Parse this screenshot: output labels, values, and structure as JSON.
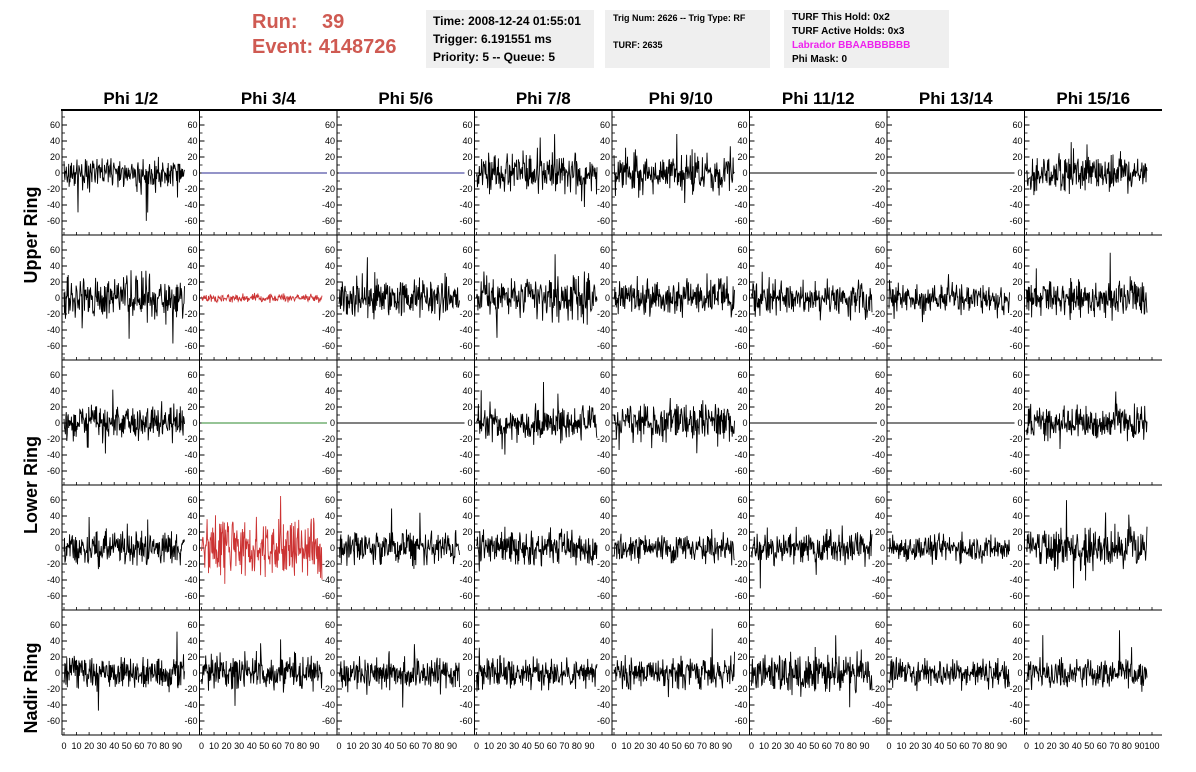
{
  "header": {
    "run_label": "Run:",
    "run_value": "39",
    "event_label": "Event:",
    "event_value": "4148726"
  },
  "info": {
    "time": "Time: 2008-12-24 01:55:01",
    "trigger": "Trigger: 6.191551 ms",
    "priority": "Priority: 5 -- Queue: 5",
    "trig_num": "Trig Num: 2626 -- Trig Type: RF",
    "turf": "TURF: 2635",
    "turf_this_hold": "TURF This Hold: 0x2",
    "turf_active_holds": "TURF Active Holds: 0x3",
    "labrador": "Labrador BBAABBBBBB",
    "phi_mask": "Phi Mask: 0"
  },
  "colors": {
    "run_text": "#cf5a52",
    "labrador_text": "#ee22ee",
    "info_box_bg": "#efefef",
    "trace_default": "#000000",
    "trace_red": "#cc3333",
    "trace_blue": "#2a2a90",
    "trace_green": "#2d8a2d"
  },
  "column_labels": [
    "Phi 1/2",
    "Phi 3/4",
    "Phi 5/6",
    "Phi 7/8",
    "Phi 9/10",
    "Phi 11/12",
    "Phi 13/14",
    "Phi 15/16"
  ],
  "ring_labels": [
    "Upper Ring",
    "Lower Ring",
    "Nadir Ring"
  ],
  "chart_data": {
    "type": "line",
    "title": "",
    "xlabel": "",
    "ylabel": "",
    "xlim": [
      0,
      100
    ],
    "ylim": [
      -70,
      70
    ],
    "y_ticks": [
      -60,
      -40,
      -20,
      0,
      20,
      40,
      60
    ],
    "x_ticks": [
      0,
      10,
      20,
      30,
      40,
      50,
      60,
      70,
      80,
      90,
      100
    ],
    "grid": false,
    "legend": "none",
    "panels": [
      {
        "row": 1,
        "col": 1,
        "color": "#000000",
        "flat": false,
        "x_range": [
          0,
          96
        ],
        "amplitude": 13,
        "seed": 11
      },
      {
        "row": 1,
        "col": 2,
        "color": "#2a2a90",
        "flat": true
      },
      {
        "row": 1,
        "col": 3,
        "color": "#2a2a90",
        "flat": true
      },
      {
        "row": 1,
        "col": 4,
        "color": "#000000",
        "flat": false,
        "x_range": [
          0,
          96
        ],
        "amplitude": 14,
        "seed": 12
      },
      {
        "row": 1,
        "col": 5,
        "color": "#000000",
        "flat": false,
        "x_range": [
          0,
          96
        ],
        "amplitude": 15,
        "seed": 13
      },
      {
        "row": 1,
        "col": 6,
        "color": "#000000",
        "flat": true
      },
      {
        "row": 1,
        "col": 7,
        "color": "#000000",
        "flat": true
      },
      {
        "row": 1,
        "col": 8,
        "color": "#000000",
        "flat": false,
        "x_range": [
          0,
          96
        ],
        "amplitude": 15,
        "seed": 14
      },
      {
        "row": 2,
        "col": 1,
        "color": "#000000",
        "flat": false,
        "x_range": [
          0,
          96
        ],
        "amplitude": 17,
        "seed": 21
      },
      {
        "row": 2,
        "col": 2,
        "color": "#cc3333",
        "flat": false,
        "x_range": [
          0,
          96
        ],
        "amplitude": 3,
        "seed": 22
      },
      {
        "row": 2,
        "col": 3,
        "color": "#000000",
        "flat": false,
        "x_range": [
          0,
          96
        ],
        "amplitude": 15,
        "seed": 23
      },
      {
        "row": 2,
        "col": 4,
        "color": "#000000",
        "flat": false,
        "x_range": [
          0,
          96
        ],
        "amplitude": 17,
        "seed": 24
      },
      {
        "row": 2,
        "col": 5,
        "color": "#000000",
        "flat": false,
        "x_range": [
          0,
          96
        ],
        "amplitude": 13,
        "seed": 25
      },
      {
        "row": 2,
        "col": 6,
        "color": "#000000",
        "flat": false,
        "x_range": [
          0,
          96
        ],
        "amplitude": 14,
        "seed": 26
      },
      {
        "row": 2,
        "col": 7,
        "color": "#000000",
        "flat": false,
        "x_range": [
          0,
          96
        ],
        "amplitude": 11,
        "seed": 27
      },
      {
        "row": 2,
        "col": 8,
        "color": "#000000",
        "flat": false,
        "x_range": [
          0,
          96
        ],
        "amplitude": 14,
        "seed": 28
      },
      {
        "row": 3,
        "col": 1,
        "color": "#000000",
        "flat": false,
        "x_range": [
          0,
          96
        ],
        "amplitude": 13,
        "seed": 31
      },
      {
        "row": 3,
        "col": 2,
        "color": "#2d8a2d",
        "flat": true
      },
      {
        "row": 3,
        "col": 3,
        "color": "#000000",
        "flat": true
      },
      {
        "row": 3,
        "col": 4,
        "color": "#000000",
        "flat": false,
        "x_range": [
          0,
          96
        ],
        "amplitude": 13,
        "seed": 32
      },
      {
        "row": 3,
        "col": 5,
        "color": "#000000",
        "flat": false,
        "x_range": [
          0,
          96
        ],
        "amplitude": 14,
        "seed": 33
      },
      {
        "row": 3,
        "col": 6,
        "color": "#000000",
        "flat": true
      },
      {
        "row": 3,
        "col": 7,
        "color": "#000000",
        "flat": true
      },
      {
        "row": 3,
        "col": 8,
        "color": "#000000",
        "flat": false,
        "x_range": [
          0,
          96
        ],
        "amplitude": 12,
        "seed": 34
      },
      {
        "row": 4,
        "col": 1,
        "color": "#000000",
        "flat": false,
        "x_range": [
          0,
          96
        ],
        "amplitude": 13,
        "seed": 41
      },
      {
        "row": 4,
        "col": 2,
        "color": "#cc3333",
        "flat": false,
        "x_range": [
          0,
          96
        ],
        "amplitude": 22,
        "seed": 42
      },
      {
        "row": 4,
        "col": 3,
        "color": "#000000",
        "flat": false,
        "x_range": [
          0,
          96
        ],
        "amplitude": 13,
        "seed": 43
      },
      {
        "row": 4,
        "col": 4,
        "color": "#000000",
        "flat": false,
        "x_range": [
          0,
          96
        ],
        "amplitude": 14,
        "seed": 44
      },
      {
        "row": 4,
        "col": 5,
        "color": "#000000",
        "flat": false,
        "x_range": [
          0,
          96
        ],
        "amplitude": 11,
        "seed": 45
      },
      {
        "row": 4,
        "col": 6,
        "color": "#000000",
        "flat": false,
        "x_range": [
          0,
          96
        ],
        "amplitude": 12,
        "seed": 46
      },
      {
        "row": 4,
        "col": 7,
        "color": "#000000",
        "flat": false,
        "x_range": [
          0,
          96
        ],
        "amplitude": 10,
        "seed": 47
      },
      {
        "row": 4,
        "col": 8,
        "color": "#000000",
        "flat": false,
        "x_range": [
          0,
          96
        ],
        "amplitude": 15,
        "seed": 48
      },
      {
        "row": 5,
        "col": 1,
        "color": "#000000",
        "flat": false,
        "x_range": [
          0,
          96
        ],
        "amplitude": 12,
        "seed": 51
      },
      {
        "row": 5,
        "col": 2,
        "color": "#000000",
        "flat": false,
        "x_range": [
          0,
          96
        ],
        "amplitude": 14,
        "seed": 52
      },
      {
        "row": 5,
        "col": 3,
        "color": "#000000",
        "flat": false,
        "x_range": [
          0,
          96
        ],
        "amplitude": 13,
        "seed": 53
      },
      {
        "row": 5,
        "col": 4,
        "color": "#000000",
        "flat": false,
        "x_range": [
          0,
          96
        ],
        "amplitude": 12,
        "seed": 54
      },
      {
        "row": 5,
        "col": 5,
        "color": "#000000",
        "flat": false,
        "x_range": [
          0,
          96
        ],
        "amplitude": 12,
        "seed": 55
      },
      {
        "row": 5,
        "col": 6,
        "color": "#000000",
        "flat": false,
        "x_range": [
          0,
          96
        ],
        "amplitude": 15,
        "seed": 56
      },
      {
        "row": 5,
        "col": 7,
        "color": "#000000",
        "flat": false,
        "x_range": [
          0,
          96
        ],
        "amplitude": 11,
        "seed": 57
      },
      {
        "row": 5,
        "col": 8,
        "color": "#000000",
        "flat": false,
        "x_range": [
          0,
          96
        ],
        "amplitude": 11,
        "seed": 58
      }
    ]
  }
}
